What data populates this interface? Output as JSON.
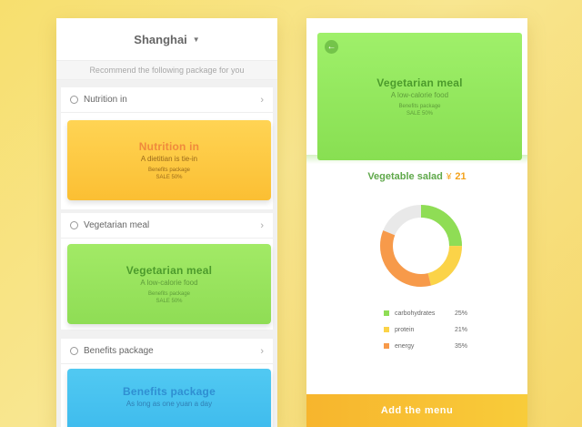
{
  "colors": {
    "background": "#f8e690",
    "accent_green": "#8fdd55",
    "accent_orange": "#fbbf33",
    "accent_blue": "#3ebbed",
    "cta": "#f8c030"
  },
  "left": {
    "city": "Shanghai",
    "city_caret_icon": "caret-down-icon",
    "subtitle": "Recommend the following package for you",
    "packages": [
      {
        "label": "Nutrition in",
        "card_title": "Nutrition in",
        "card_sub": "A dietitian is tie-in",
        "card_note_1": "Benefits package",
        "card_note_2": "SALE 50%"
      },
      {
        "label": "Vegetarian meal",
        "card_title": "Vegetarian meal",
        "card_sub": "A low-calorie food",
        "card_note_1": "Benefits package",
        "card_note_2": "SALE 50%"
      },
      {
        "label": "Benefits package",
        "card_title": "Benefits package",
        "card_sub": "As long as one yuan a day"
      }
    ]
  },
  "right": {
    "back_icon": "arrow-left-icon",
    "hero_title": "Vegetarian meal",
    "hero_sub": "A low-calorie food",
    "hero_note_1": "Benefits package",
    "hero_note_2": "SALE 50%",
    "salad_name": "Vegetable salad",
    "currency": "¥",
    "price": "21",
    "legend": [
      {
        "name": "carbohydrates",
        "pct": "25%",
        "color": "#8fdd55"
      },
      {
        "name": "protein",
        "pct": "21%",
        "color": "#fbd348"
      },
      {
        "name": "energy",
        "pct": "35%",
        "color": "#f79a4a"
      }
    ],
    "add_button": "Add the menu"
  },
  "chart_data": {
    "type": "pie",
    "categories": [
      "carbohydrates",
      "protein",
      "energy"
    ],
    "values": [
      25,
      21,
      35
    ],
    "colors": [
      "#8fdd55",
      "#fbd348",
      "#f79a4a"
    ],
    "remainder_color": "#e9e9e9"
  }
}
